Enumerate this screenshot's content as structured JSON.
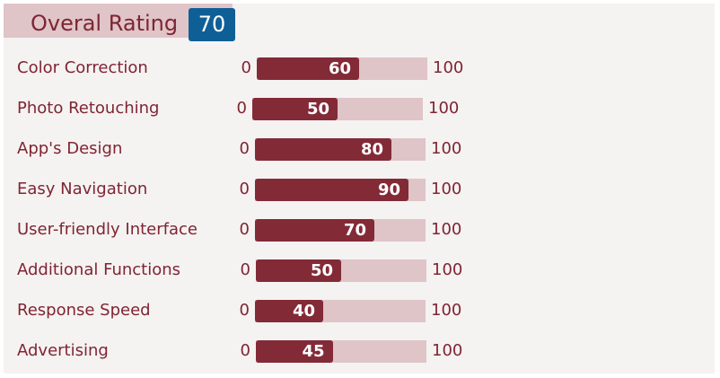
{
  "header": {
    "title": "Overal Rating",
    "score": "70"
  },
  "colors": {
    "accent": "#832a37",
    "track": "#dfc4c8",
    "badge": "#0f5f97",
    "text": "#7f2531",
    "panel": "#f5f2f2"
  },
  "ratings": [
    {
      "label": "Color Correction",
      "min": "0",
      "value": 60,
      "max": "100"
    },
    {
      "label": "Photo Retouching",
      "min": "0",
      "value": 50,
      "max": "100"
    },
    {
      "label": "App's Design",
      "min": "0",
      "value": 80,
      "max": "100"
    },
    {
      "label": "Easy Navigation",
      "min": "0",
      "value": 90,
      "max": "100"
    },
    {
      "label": "User-friendly Interface",
      "min": "0",
      "value": 70,
      "max": "100"
    },
    {
      "label": "Additional Functions",
      "min": "0",
      "value": 50,
      "max": "100"
    },
    {
      "label": "Response Speed",
      "min": "0",
      "value": 40,
      "max": "100"
    },
    {
      "label": "Advertising",
      "min": "0",
      "value": 45,
      "max": "100"
    }
  ]
}
